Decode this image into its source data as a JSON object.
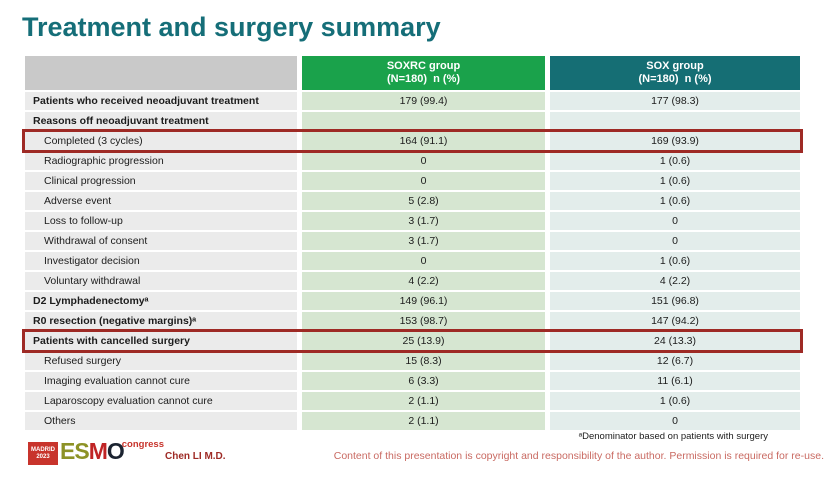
{
  "slide": {
    "title": "Treatment and surgery summary"
  },
  "colors": {
    "title": "#156e78",
    "header_green": "#1aa24b",
    "header_teal": "#156e74",
    "header_gray": "#c9c9c9",
    "label_cell": "#ebebeb",
    "soxrc_cell": "#d6e6d1",
    "sox_cell": "#e3edeb",
    "highlight_border": "#9e2a25",
    "copyright_text": "#c96a62"
  },
  "table": {
    "columns": [
      {
        "line1": "",
        "line2": ""
      },
      {
        "line1": "SOXRC group",
        "line2": "(N=180)  n (%)"
      },
      {
        "line1": "SOX group",
        "line2": "(N=180)  n (%)"
      }
    ],
    "rows": [
      {
        "label": "Patients who received neoadjuvant treatment",
        "soxrc": "179 (99.4)",
        "sox": "177 (98.3)",
        "bold": true,
        "indent": false,
        "highlighted": false
      },
      {
        "label": "Reasons off neoadjuvant treatment",
        "soxrc": "",
        "sox": "",
        "bold": true,
        "indent": false,
        "highlighted": false
      },
      {
        "label": "Completed (3 cycles)",
        "soxrc": "164 (91.1)",
        "sox": "169 (93.9)",
        "bold": false,
        "indent": true,
        "highlighted": true
      },
      {
        "label": "Radiographic progression",
        "soxrc": "0",
        "sox": "1 (0.6)",
        "bold": false,
        "indent": true,
        "highlighted": false
      },
      {
        "label": "Clinical progression",
        "soxrc": "0",
        "sox": "1 (0.6)",
        "bold": false,
        "indent": true,
        "highlighted": false
      },
      {
        "label": "Adverse event",
        "soxrc": "5 (2.8)",
        "sox": "1 (0.6)",
        "bold": false,
        "indent": true,
        "highlighted": false
      },
      {
        "label": "Loss to follow-up",
        "soxrc": "3 (1.7)",
        "sox": "0",
        "bold": false,
        "indent": true,
        "highlighted": false
      },
      {
        "label": "Withdrawal of consent",
        "soxrc": "3 (1.7)",
        "sox": "0",
        "bold": false,
        "indent": true,
        "highlighted": false
      },
      {
        "label": "Investigator decision",
        "soxrc": "0",
        "sox": "1 (0.6)",
        "bold": false,
        "indent": true,
        "highlighted": false
      },
      {
        "label": "Voluntary withdrawal",
        "soxrc": "4 (2.2)",
        "sox": "4 (2.2)",
        "bold": false,
        "indent": true,
        "highlighted": false
      },
      {
        "label": "D2 Lymphadenectomyᵃ",
        "soxrc": "149 (96.1)",
        "sox": "151 (96.8)",
        "bold": true,
        "indent": false,
        "highlighted": false
      },
      {
        "label": "R0 resection (negative margins)ᵃ",
        "soxrc": "153 (98.7)",
        "sox": "147 (94.2)",
        "bold": true,
        "indent": false,
        "highlighted": false
      },
      {
        "label": "Patients with cancelled surgery",
        "soxrc": "25 (13.9)",
        "sox": "24 (13.3)",
        "bold": true,
        "indent": false,
        "highlighted": true
      },
      {
        "label": "Refused surgery",
        "soxrc": "15 (8.3)",
        "sox": "12 (6.7)",
        "bold": false,
        "indent": true,
        "highlighted": false
      },
      {
        "label": "Imaging evaluation cannot cure",
        "soxrc": "6 (3.3)",
        "sox": "11 (6.1)",
        "bold": false,
        "indent": true,
        "highlighted": false
      },
      {
        "label": "Laparoscopy evaluation cannot cure",
        "soxrc": "2 (1.1)",
        "sox": "1 (0.6)",
        "bold": false,
        "indent": true,
        "highlighted": false
      },
      {
        "label": "Others",
        "soxrc": "2 (1.1)",
        "sox": "0",
        "bold": false,
        "indent": true,
        "highlighted": false
      }
    ]
  },
  "chart_data": {
    "type": "table",
    "title": "Treatment and surgery summary",
    "columns": [
      "",
      "SOXRC group (N=180) n (%)",
      "SOX group (N=180) n (%)"
    ],
    "rows": [
      [
        "Patients who received neoadjuvant treatment",
        "179 (99.4)",
        "177 (98.3)"
      ],
      [
        "Reasons off neoadjuvant treatment",
        "",
        ""
      ],
      [
        "Completed (3 cycles)",
        "164 (91.1)",
        "169 (93.9)"
      ],
      [
        "Radiographic progression",
        "0",
        "1 (0.6)"
      ],
      [
        "Clinical progression",
        "0",
        "1 (0.6)"
      ],
      [
        "Adverse event",
        "5 (2.8)",
        "1 (0.6)"
      ],
      [
        "Loss to follow-up",
        "3 (1.7)",
        "0"
      ],
      [
        "Withdrawal of consent",
        "3 (1.7)",
        "0"
      ],
      [
        "Investigator decision",
        "0",
        "1 (0.6)"
      ],
      [
        "Voluntary withdrawal",
        "4 (2.2)",
        "4 (2.2)"
      ],
      [
        "D2 Lymphadenectomyᵃ",
        "149 (96.1)",
        "151 (96.8)"
      ],
      [
        "R0 resection (negative margins)ᵃ",
        "153 (98.7)",
        "147 (94.2)"
      ],
      [
        "Patients with cancelled surgery",
        "25 (13.9)",
        "24 (13.3)"
      ],
      [
        "Refused surgery",
        "15 (8.3)",
        "12 (6.7)"
      ],
      [
        "Imaging evaluation cannot cure",
        "6 (3.3)",
        "11 (6.1)"
      ],
      [
        "Laparoscopy evaluation cannot cure",
        "2 (1.1)",
        "1 (0.6)"
      ],
      [
        "Others",
        "2 (1.1)",
        "0"
      ]
    ],
    "highlighted_rows": [
      "Completed (3 cycles)",
      "Patients with cancelled surgery"
    ]
  },
  "footer": {
    "footnote": "ᵃDenominator based on patients with surgery",
    "presenter": "Chen LI M.D.",
    "copyright": "Content of this presentation is copyright and responsibility of the author. Permission is required for re-use.",
    "logo": {
      "badge_line1": "MADRID",
      "badge_line2": "2023",
      "letter_e": "E",
      "letter_s": "S",
      "letter_m": "M",
      "letter_o": "O",
      "congress": "congress"
    }
  }
}
